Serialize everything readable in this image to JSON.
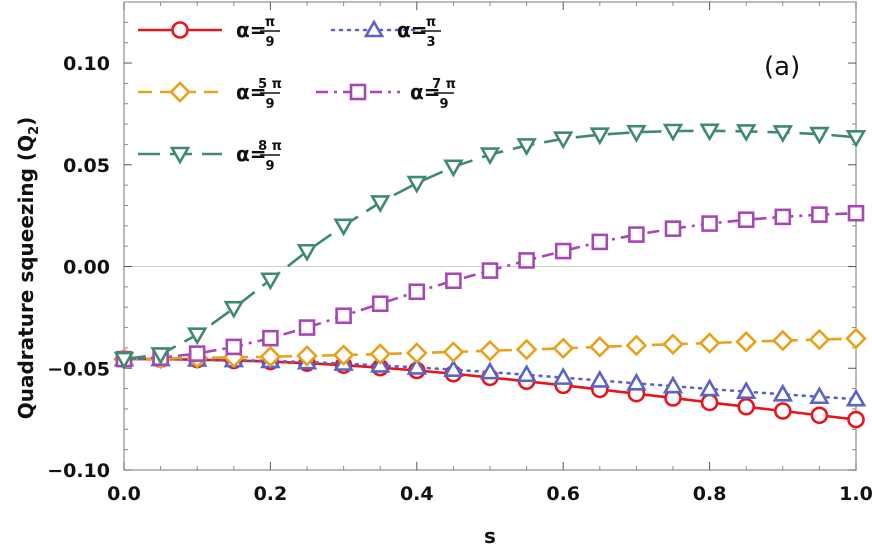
{
  "chart_data": {
    "type": "line",
    "xlabel": "s",
    "ylabel": "Quadrature squeezing (Q",
    "ylabel_sub": "2",
    "ylabel_close": ")",
    "panel_label": "(a)",
    "xlim": [
      0.0,
      1.0
    ],
    "ylim": [
      -0.1,
      0.13
    ],
    "x_ticks": [
      0.0,
      0.2,
      0.4,
      0.6,
      0.8,
      1.0
    ],
    "x_tick_labels": [
      "0.0",
      "0.2",
      "0.4",
      "0.6",
      "0.8",
      "1.0"
    ],
    "y_ticks": [
      -0.1,
      -0.05,
      0.0,
      0.05,
      0.1
    ],
    "y_tick_labels": [
      "−0.10",
      "−0.05",
      "0.00",
      "0.05",
      "0.10"
    ],
    "x": [
      0.0,
      0.05,
      0.1,
      0.15,
      0.2,
      0.25,
      0.3,
      0.35,
      0.4,
      0.45,
      0.5,
      0.55,
      0.6,
      0.65,
      0.7,
      0.75,
      0.8,
      0.85,
      0.9,
      0.95,
      1.0
    ],
    "series": [
      {
        "name": "α=π/9",
        "legend_prefix": "α=",
        "legend_num": "π",
        "legend_den": "9",
        "color": "#e8141a",
        "marker": "circle",
        "dash": "solid",
        "values": [
          -0.0455,
          -0.0455,
          -0.0458,
          -0.0462,
          -0.0467,
          -0.0475,
          -0.0485,
          -0.0497,
          -0.0511,
          -0.0527,
          -0.0545,
          -0.0564,
          -0.0584,
          -0.0604,
          -0.0625,
          -0.0646,
          -0.0668,
          -0.0689,
          -0.071,
          -0.0731,
          -0.0752
        ]
      },
      {
        "name": "α=π/3",
        "legend_prefix": "α=",
        "legend_num": "π",
        "legend_den": "3",
        "color": "#5b63c5",
        "marker": "triangle-up",
        "dash": "dotted",
        "values": [
          -0.0455,
          -0.0455,
          -0.0457,
          -0.046,
          -0.0464,
          -0.047,
          -0.0477,
          -0.0486,
          -0.0496,
          -0.0507,
          -0.0519,
          -0.0532,
          -0.0546,
          -0.056,
          -0.0574,
          -0.0588,
          -0.0602,
          -0.0615,
          -0.0628,
          -0.064,
          -0.0652
        ]
      },
      {
        "name": "α=5π/9",
        "legend_prefix": "α=",
        "legend_num": "5 π",
        "legend_den": "9",
        "color": "#e8a21a",
        "marker": "diamond",
        "dash": "dashed",
        "values": [
          -0.0455,
          -0.0452,
          -0.0449,
          -0.0446,
          -0.0443,
          -0.0439,
          -0.0435,
          -0.043,
          -0.0425,
          -0.042,
          -0.0414,
          -0.0408,
          -0.0402,
          -0.0395,
          -0.0388,
          -0.0382,
          -0.0376,
          -0.037,
          -0.0364,
          -0.0359,
          -0.0354
        ]
      },
      {
        "name": "α=7π/9",
        "legend_prefix": "α=",
        "legend_num": "7 π",
        "legend_den": "9",
        "color": "#a548b5",
        "marker": "square",
        "dash": "dashdot",
        "values": [
          -0.0455,
          -0.0448,
          -0.0428,
          -0.0395,
          -0.0352,
          -0.03,
          -0.0242,
          -0.0183,
          -0.0124,
          -0.007,
          -0.002,
          0.003,
          0.0076,
          0.0121,
          0.0157,
          0.0186,
          0.0211,
          0.023,
          0.0244,
          0.0255,
          0.0262
        ]
      },
      {
        "name": "α=8π/9",
        "legend_prefix": "α=",
        "legend_num": "8 π",
        "legend_den": "9",
        "color": "#3f8a6f",
        "marker": "triangle-down",
        "dash": "longdash",
        "values": [
          -0.0455,
          -0.0432,
          -0.0335,
          -0.0205,
          -0.0065,
          0.0075,
          0.02,
          0.0315,
          0.041,
          0.049,
          0.055,
          0.0595,
          0.0628,
          0.0648,
          0.066,
          0.0666,
          0.0667,
          0.0664,
          0.0659,
          0.0651,
          0.0635
        ]
      }
    ],
    "grid": "zero-line only",
    "legend_placement": "top-left"
  }
}
